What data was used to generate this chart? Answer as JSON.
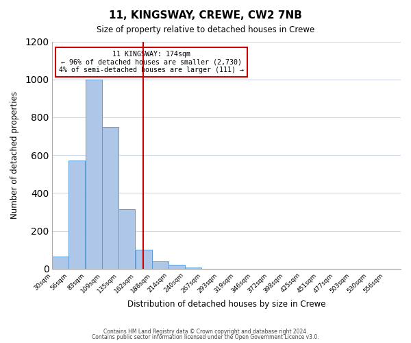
{
  "title": "11, KINGSWAY, CREWE, CW2 7NB",
  "subtitle": "Size of property relative to detached houses in Crewe",
  "xlabel": "Distribution of detached houses by size in Crewe",
  "ylabel": "Number of detached properties",
  "bin_labels": [
    "30sqm",
    "56sqm",
    "83sqm",
    "109sqm",
    "135sqm",
    "162sqm",
    "188sqm",
    "214sqm",
    "240sqm",
    "267sqm",
    "293sqm",
    "319sqm",
    "346sqm",
    "372sqm",
    "398sqm",
    "425sqm",
    "451sqm",
    "477sqm",
    "503sqm",
    "530sqm",
    "556sqm"
  ],
  "bin_edges": [
    30,
    56,
    83,
    109,
    135,
    162,
    188,
    214,
    240,
    267,
    293,
    319,
    346,
    372,
    398,
    425,
    451,
    477,
    503,
    530,
    556
  ],
  "bar_heights": [
    65,
    570,
    1000,
    748,
    315,
    100,
    40,
    20,
    5,
    0,
    0,
    0,
    0,
    0,
    0,
    0,
    0,
    0,
    0,
    0
  ],
  "bar_color": "#aec6e8",
  "bar_edgecolor": "#5b9bd5",
  "property_size": 174,
  "vline_color": "#cc0000",
  "annotation_text": "11 KINGSWAY: 174sqm\n← 96% of detached houses are smaller (2,730)\n4% of semi-detached houses are larger (111) →",
  "annotation_box_edgecolor": "#cc0000",
  "ylim": [
    0,
    1200
  ],
  "yticks": [
    0,
    200,
    400,
    600,
    800,
    1000,
    1200
  ],
  "footer1": "Contains HM Land Registry data © Crown copyright and database right 2024.",
  "footer2": "Contains public sector information licensed under the Open Government Licence v3.0.",
  "background_color": "#ffffff",
  "grid_color": "#d0d8e8"
}
